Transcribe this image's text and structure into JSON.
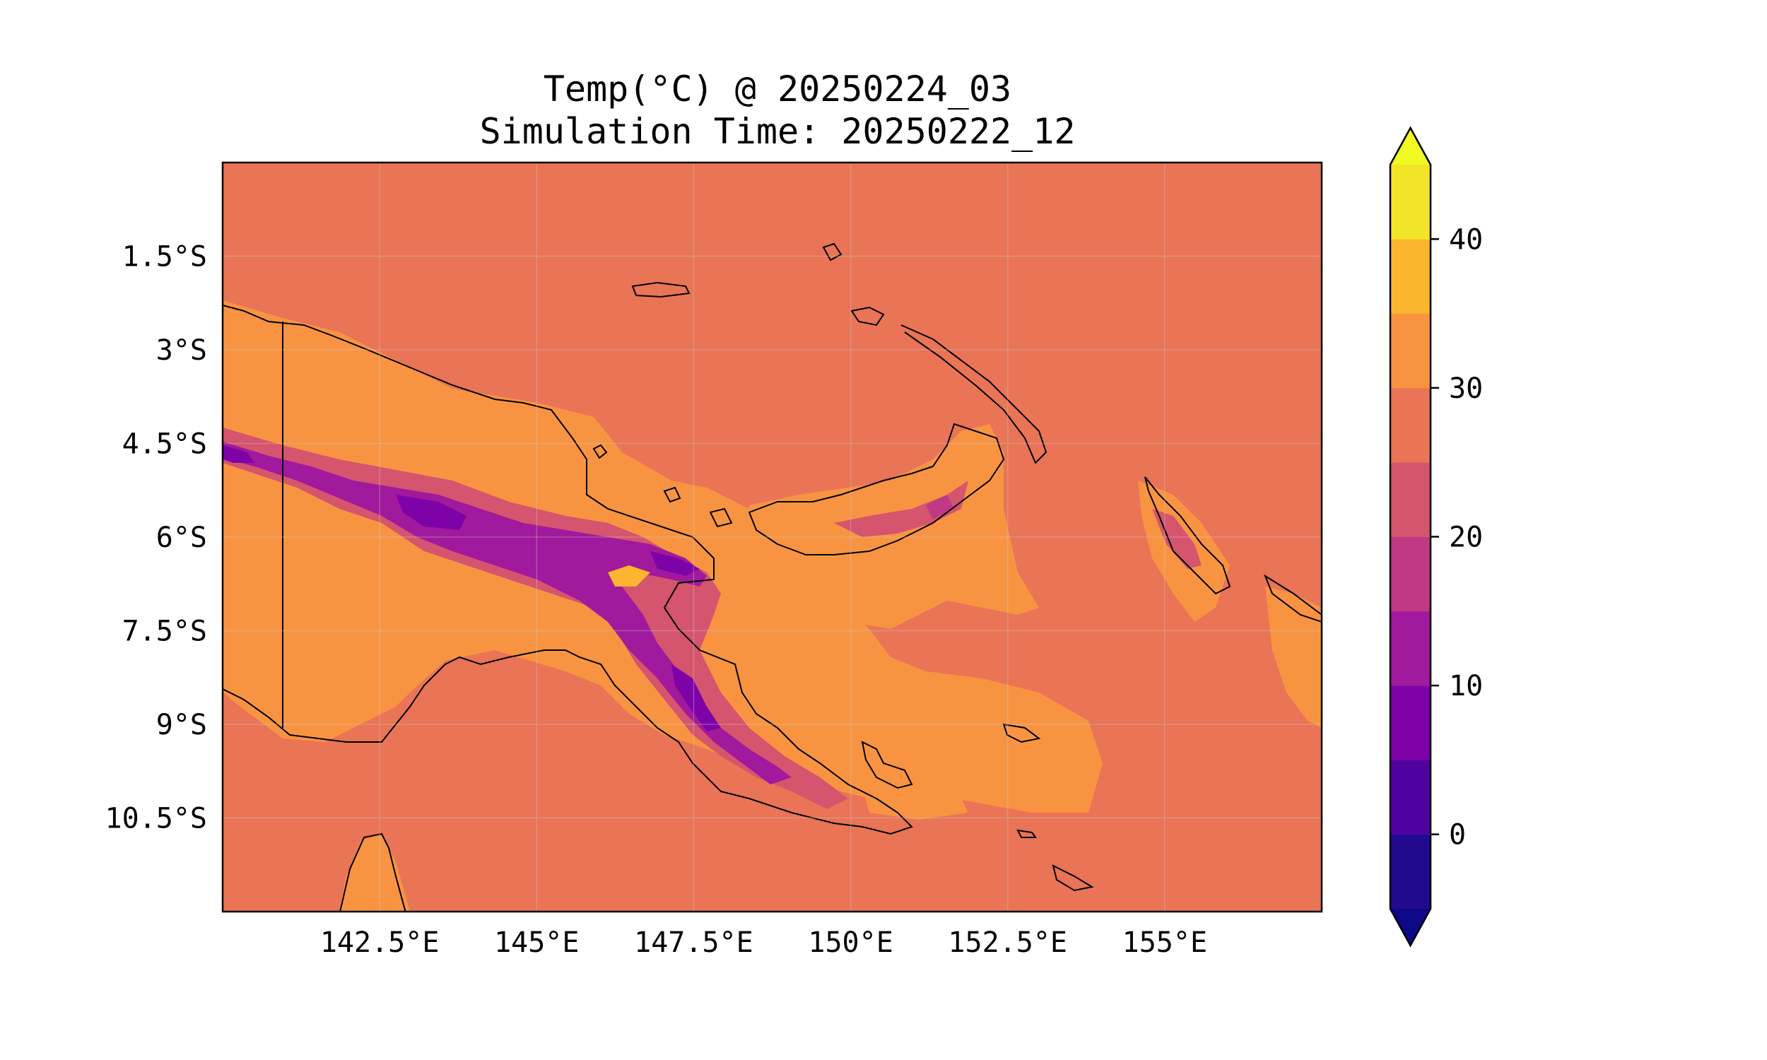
{
  "figure": {
    "title_line1": "Temp(°C) @ 20250224_03",
    "title_line2": "Simulation Time: 20250222_12"
  },
  "map": {
    "background_color": "#e97456",
    "x_ticks": [
      "142.5°E",
      "145°E",
      "147.5°E",
      "150°E",
      "152.5°E",
      "155°E"
    ],
    "y_ticks": [
      "1.5°S",
      "3°S",
      "4.5°S",
      "6°S",
      "7.5°S",
      "9°S",
      "10.5°S"
    ],
    "lon_values": [
      142.5,
      145,
      147.5,
      150,
      152.5,
      155
    ],
    "lat_values": [
      -1.5,
      -3,
      -4.5,
      -6,
      -7.5,
      -9,
      -10.5
    ],
    "lon_range": [
      140,
      157.5
    ],
    "lat_range": [
      -12,
      0
    ],
    "gridlines": true,
    "coastline_color": "#000000"
  },
  "colorbar": {
    "ticks": [
      "0",
      "10",
      "20",
      "30",
      "40"
    ],
    "tick_values": [
      0,
      10,
      20,
      30,
      40
    ],
    "range": [
      -5,
      45
    ],
    "extend": "both",
    "levels": [
      {
        "from": -5,
        "to": 0,
        "color": "#220a8e"
      },
      {
        "from": 0,
        "to": 5,
        "color": "#4f02a0"
      },
      {
        "from": 5,
        "to": 10,
        "color": "#7d03a8"
      },
      {
        "from": 10,
        "to": 15,
        "color": "#a1199c"
      },
      {
        "from": 15,
        "to": 20,
        "color": "#bf3984"
      },
      {
        "from": 20,
        "to": 25,
        "color": "#d5546e"
      },
      {
        "from": 25,
        "to": 30,
        "color": "#e97456"
      },
      {
        "from": 30,
        "to": 35,
        "color": "#f89441"
      },
      {
        "from": 35,
        "to": 40,
        "color": "#fcb52e"
      },
      {
        "from": 40,
        "to": 45,
        "color": "#f2e426"
      }
    ],
    "under_color": "#0d0887",
    "over_color": "#f0f921"
  }
}
